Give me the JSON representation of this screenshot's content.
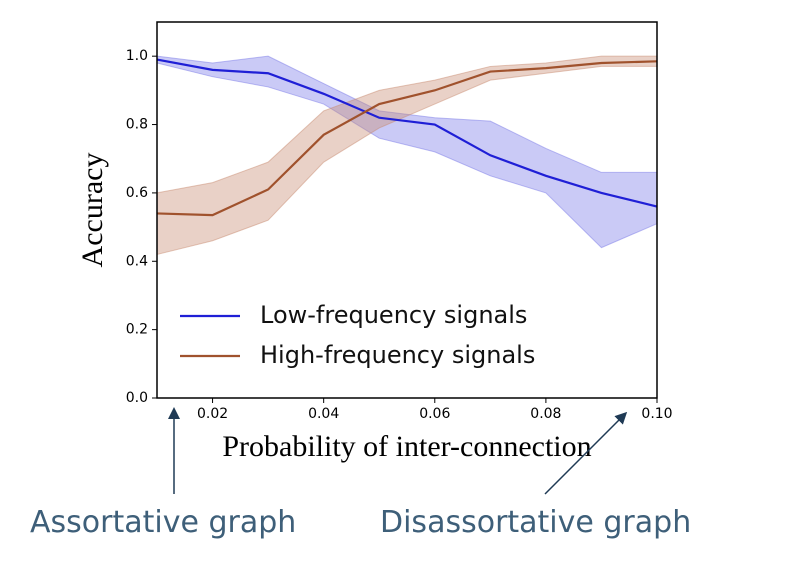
{
  "chart_data": {
    "type": "line",
    "x": [
      0.01,
      0.02,
      0.03,
      0.04,
      0.05,
      0.06,
      0.07,
      0.08,
      0.09,
      0.1
    ],
    "series": [
      {
        "name": "Low-frequency signals",
        "color": "#1f1fd6",
        "band_color": "#7b7be8",
        "values": [
          0.99,
          0.96,
          0.95,
          0.89,
          0.82,
          0.8,
          0.71,
          0.65,
          0.6,
          0.56
        ],
        "upper": [
          1.0,
          0.98,
          1.0,
          0.92,
          0.84,
          0.82,
          0.81,
          0.73,
          0.66,
          0.66
        ],
        "lower": [
          0.98,
          0.94,
          0.91,
          0.86,
          0.76,
          0.72,
          0.65,
          0.6,
          0.44,
          0.51
        ]
      },
      {
        "name": "High-frequency signals",
        "color": "#a0522d",
        "band_color": "#c98d74",
        "values": [
          0.54,
          0.535,
          0.61,
          0.77,
          0.86,
          0.9,
          0.955,
          0.965,
          0.98,
          0.985
        ],
        "upper": [
          0.6,
          0.63,
          0.69,
          0.84,
          0.9,
          0.93,
          0.97,
          0.98,
          1.0,
          1.0
        ],
        "lower": [
          0.42,
          0.46,
          0.52,
          0.69,
          0.79,
          0.86,
          0.93,
          0.95,
          0.97,
          0.97
        ]
      }
    ],
    "xlabel": "Probability of inter-connection",
    "ylabel": "Accuracy",
    "xlim": [
      0.01,
      0.1
    ],
    "ylim": [
      0,
      1.1
    ],
    "xticks": [
      0.02,
      0.04,
      0.06,
      0.08,
      {
        "value": 0.1,
        "label": "0.10"
      }
    ],
    "yticks": [
      {
        "value": 0,
        "label": "0.0"
      },
      0.2,
      0.4,
      0.6,
      0.8,
      {
        "value": 1,
        "label": "1.0"
      }
    ],
    "grid": false,
    "legend": "lower left",
    "annotations": [
      {
        "text": "Assortative graph"
      },
      {
        "text": "Disassortative graph"
      }
    ]
  }
}
